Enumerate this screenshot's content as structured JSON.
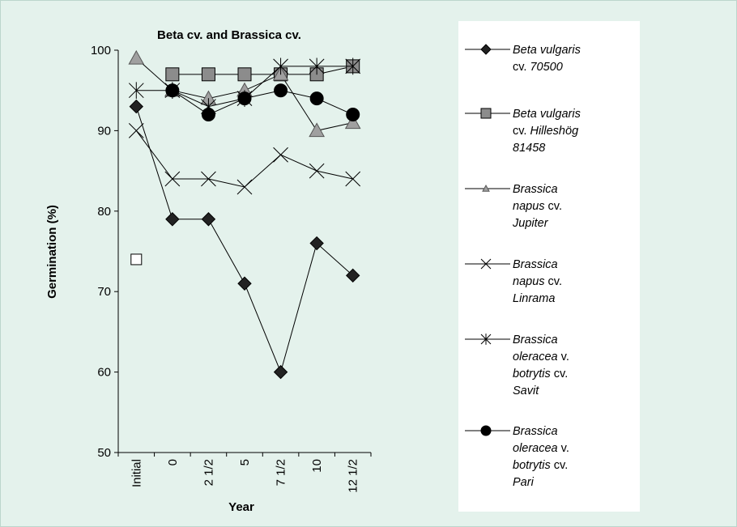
{
  "chart_data": {
    "type": "line",
    "title": "Beta cv. and Brassica cv.",
    "xlabel": "Year",
    "ylabel": "Germination (%)",
    "ylim": [
      50,
      100
    ],
    "yticks": [
      "50",
      "60",
      "70",
      "80",
      "90",
      "100"
    ],
    "categories": [
      "Initial",
      "0",
      "2 1/2",
      "5",
      "7 1/2",
      "10",
      "12 1/2"
    ],
    "grid": false,
    "legend_position": "right",
    "series": [
      {
        "name": "Beta vulgaris cv. 70500",
        "legend_lines": [
          [
            {
              "t": "Beta vulgaris",
              "i": true
            }
          ],
          [
            {
              "t": "cv. ",
              "i": false
            },
            {
              "t": "70500",
              "i": true
            }
          ]
        ],
        "marker": "diamond",
        "color": "#000000",
        "fill": "#222222",
        "values": [
          93,
          79,
          79,
          71,
          60,
          76,
          72
        ]
      },
      {
        "name": "Beta vulgaris cv. Hilleshög 81458",
        "legend_lines": [
          [
            {
              "t": "Beta vulgaris",
              "i": true
            }
          ],
          [
            {
              "t": "cv. ",
              "i": false
            },
            {
              "t": "Hilleshög",
              "i": true
            }
          ],
          [
            {
              "t": "81458",
              "i": true
            }
          ]
        ],
        "marker": "square",
        "color": "#000000",
        "fill": "#8c8c8c",
        "values": [
          74,
          97,
          97,
          97,
          97,
          97,
          98
        ],
        "unconnected_first": true
      },
      {
        "name": "Brassica napus cv. Jupiter",
        "legend_lines": [
          [
            {
              "t": "Brassica",
              "i": true
            }
          ],
          [
            {
              "t": "napus",
              "i": true
            },
            {
              "t": " cv.",
              "i": false
            }
          ],
          [
            {
              "t": "Jupiter",
              "i": true
            }
          ]
        ],
        "marker": "triangle",
        "color": "#000000",
        "fill": "#a0a0a0",
        "values": [
          99,
          95,
          94,
          95,
          97,
          90,
          91
        ]
      },
      {
        "name": "Brassica napus cv. Linrama",
        "legend_lines": [
          [
            {
              "t": "Brassica",
              "i": true
            }
          ],
          [
            {
              "t": "napus",
              "i": true
            },
            {
              "t": " cv.",
              "i": false
            }
          ],
          [
            {
              "t": "Linrama",
              "i": true
            }
          ]
        ],
        "marker": "x",
        "color": "#000000",
        "fill": "none",
        "values": [
          90,
          84,
          84,
          83,
          87,
          85,
          84
        ]
      },
      {
        "name": "Brassica oleracea v. botrytis cv. Savit",
        "legend_lines": [
          [
            {
              "t": "Brassica",
              "i": true
            }
          ],
          [
            {
              "t": "oleracea",
              "i": true
            },
            {
              "t": " v.",
              "i": false
            }
          ],
          [
            {
              "t": "botrytis",
              "i": true
            },
            {
              "t": " cv.",
              "i": false
            }
          ],
          [
            {
              "t": "Savit",
              "i": true
            }
          ]
        ],
        "marker": "asterisk",
        "color": "#000000",
        "fill": "none",
        "values": [
          95,
          95,
          93,
          94,
          98,
          98,
          98
        ]
      },
      {
        "name": "Brassica oleracea v. botrytis cv. Pari",
        "legend_lines": [
          [
            {
              "t": "Brassica",
              "i": true
            }
          ],
          [
            {
              "t": "oleracea",
              "i": true
            },
            {
              "t": " v.",
              "i": false
            }
          ],
          [
            {
              "t": "botrytis",
              "i": true
            },
            {
              "t": " cv.",
              "i": false
            }
          ],
          [
            {
              "t": "Pari",
              "i": true
            }
          ]
        ],
        "marker": "circle",
        "color": "#000000",
        "fill": "#000000",
        "values": [
          null,
          95,
          92,
          94,
          95,
          94,
          92
        ]
      }
    ]
  }
}
